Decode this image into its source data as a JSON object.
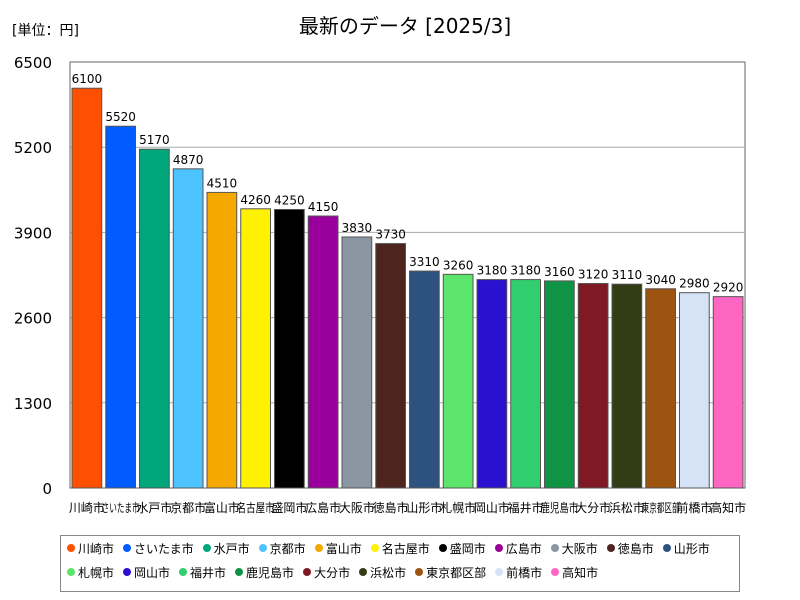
{
  "chart_data": {
    "type": "bar",
    "title": "最新のデータ [2025/3]",
    "unit_label": "[単位：円]",
    "ylim": [
      0,
      6500
    ],
    "yticks": [
      0,
      1300,
      2600,
      3900,
      5200,
      6500
    ],
    "categories": [
      "川崎市",
      "さいたま市",
      "水戸市",
      "京都市",
      "富山市",
      "名古屋市",
      "盛岡市",
      "広島市",
      "大阪市",
      "徳島市",
      "山形市",
      "札幌市",
      "岡山市",
      "福井市",
      "鹿児島市",
      "大分市",
      "浜松市",
      "東京都区部",
      "前橋市",
      "高知市"
    ],
    "values": [
      6100,
      5520,
      5170,
      4870,
      4510,
      4260,
      4250,
      4150,
      3830,
      3730,
      3310,
      3260,
      3180,
      3180,
      3160,
      3120,
      3110,
      3040,
      2980,
      2920
    ],
    "colors": [
      "#ff4f00",
      "#005cff",
      "#00a77a",
      "#4dc4ff",
      "#f5a800",
      "#fff200",
      "#000000",
      "#99009c",
      "#8a97a3",
      "#4d241e",
      "#2e5280",
      "#5ce56b",
      "#2a10cf",
      "#31cf70",
      "#0f9446",
      "#7f1a24",
      "#333d15",
      "#9c5410",
      "#d6e2f5",
      "#ff66c2"
    ],
    "legend_position": "bottom",
    "grid": true
  }
}
